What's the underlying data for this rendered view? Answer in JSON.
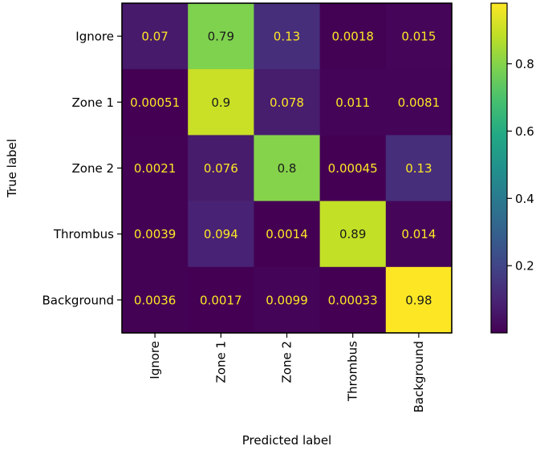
{
  "chart_data": {
    "type": "heatmap",
    "title": "",
    "xlabel": "Predicted label",
    "ylabel": "True label",
    "x_categories": [
      "Ignore",
      "Zone 1",
      "Zone 2",
      "Thrombus",
      "Background"
    ],
    "y_categories": [
      "Ignore",
      "Zone 1",
      "Zone 2",
      "Thrombus",
      "Background"
    ],
    "values": [
      [
        0.07,
        0.79,
        0.13,
        0.0018,
        0.015
      ],
      [
        0.00051,
        0.9,
        0.078,
        0.011,
        0.0081
      ],
      [
        0.0021,
        0.076,
        0.8,
        0.00045,
        0.13
      ],
      [
        0.0039,
        0.094,
        0.0014,
        0.89,
        0.014
      ],
      [
        0.0036,
        0.0017,
        0.0099,
        0.00033,
        0.98
      ]
    ],
    "cell_labels": [
      [
        "0.07",
        "0.79",
        "0.13",
        "0.0018",
        "0.015"
      ],
      [
        "0.00051",
        "0.9",
        "0.078",
        "0.011",
        "0.0081"
      ],
      [
        "0.0021",
        "0.076",
        "0.8",
        "0.00045",
        "0.13"
      ],
      [
        "0.0039",
        "0.094",
        "0.0014",
        "0.89",
        "0.014"
      ],
      [
        "0.0036",
        "0.0017",
        "0.0099",
        "0.00033",
        "0.98"
      ]
    ],
    "colormap": "viridis",
    "colorbar": {
      "range": [
        0.00033,
        0.98
      ],
      "ticks": [
        0.2,
        0.4,
        0.6,
        0.8
      ],
      "tick_labels": [
        "0.2",
        "0.4",
        "0.6",
        "0.8"
      ]
    },
    "text_colors": {
      "light": "#fde725",
      "dark": "#1a1a1a"
    }
  }
}
